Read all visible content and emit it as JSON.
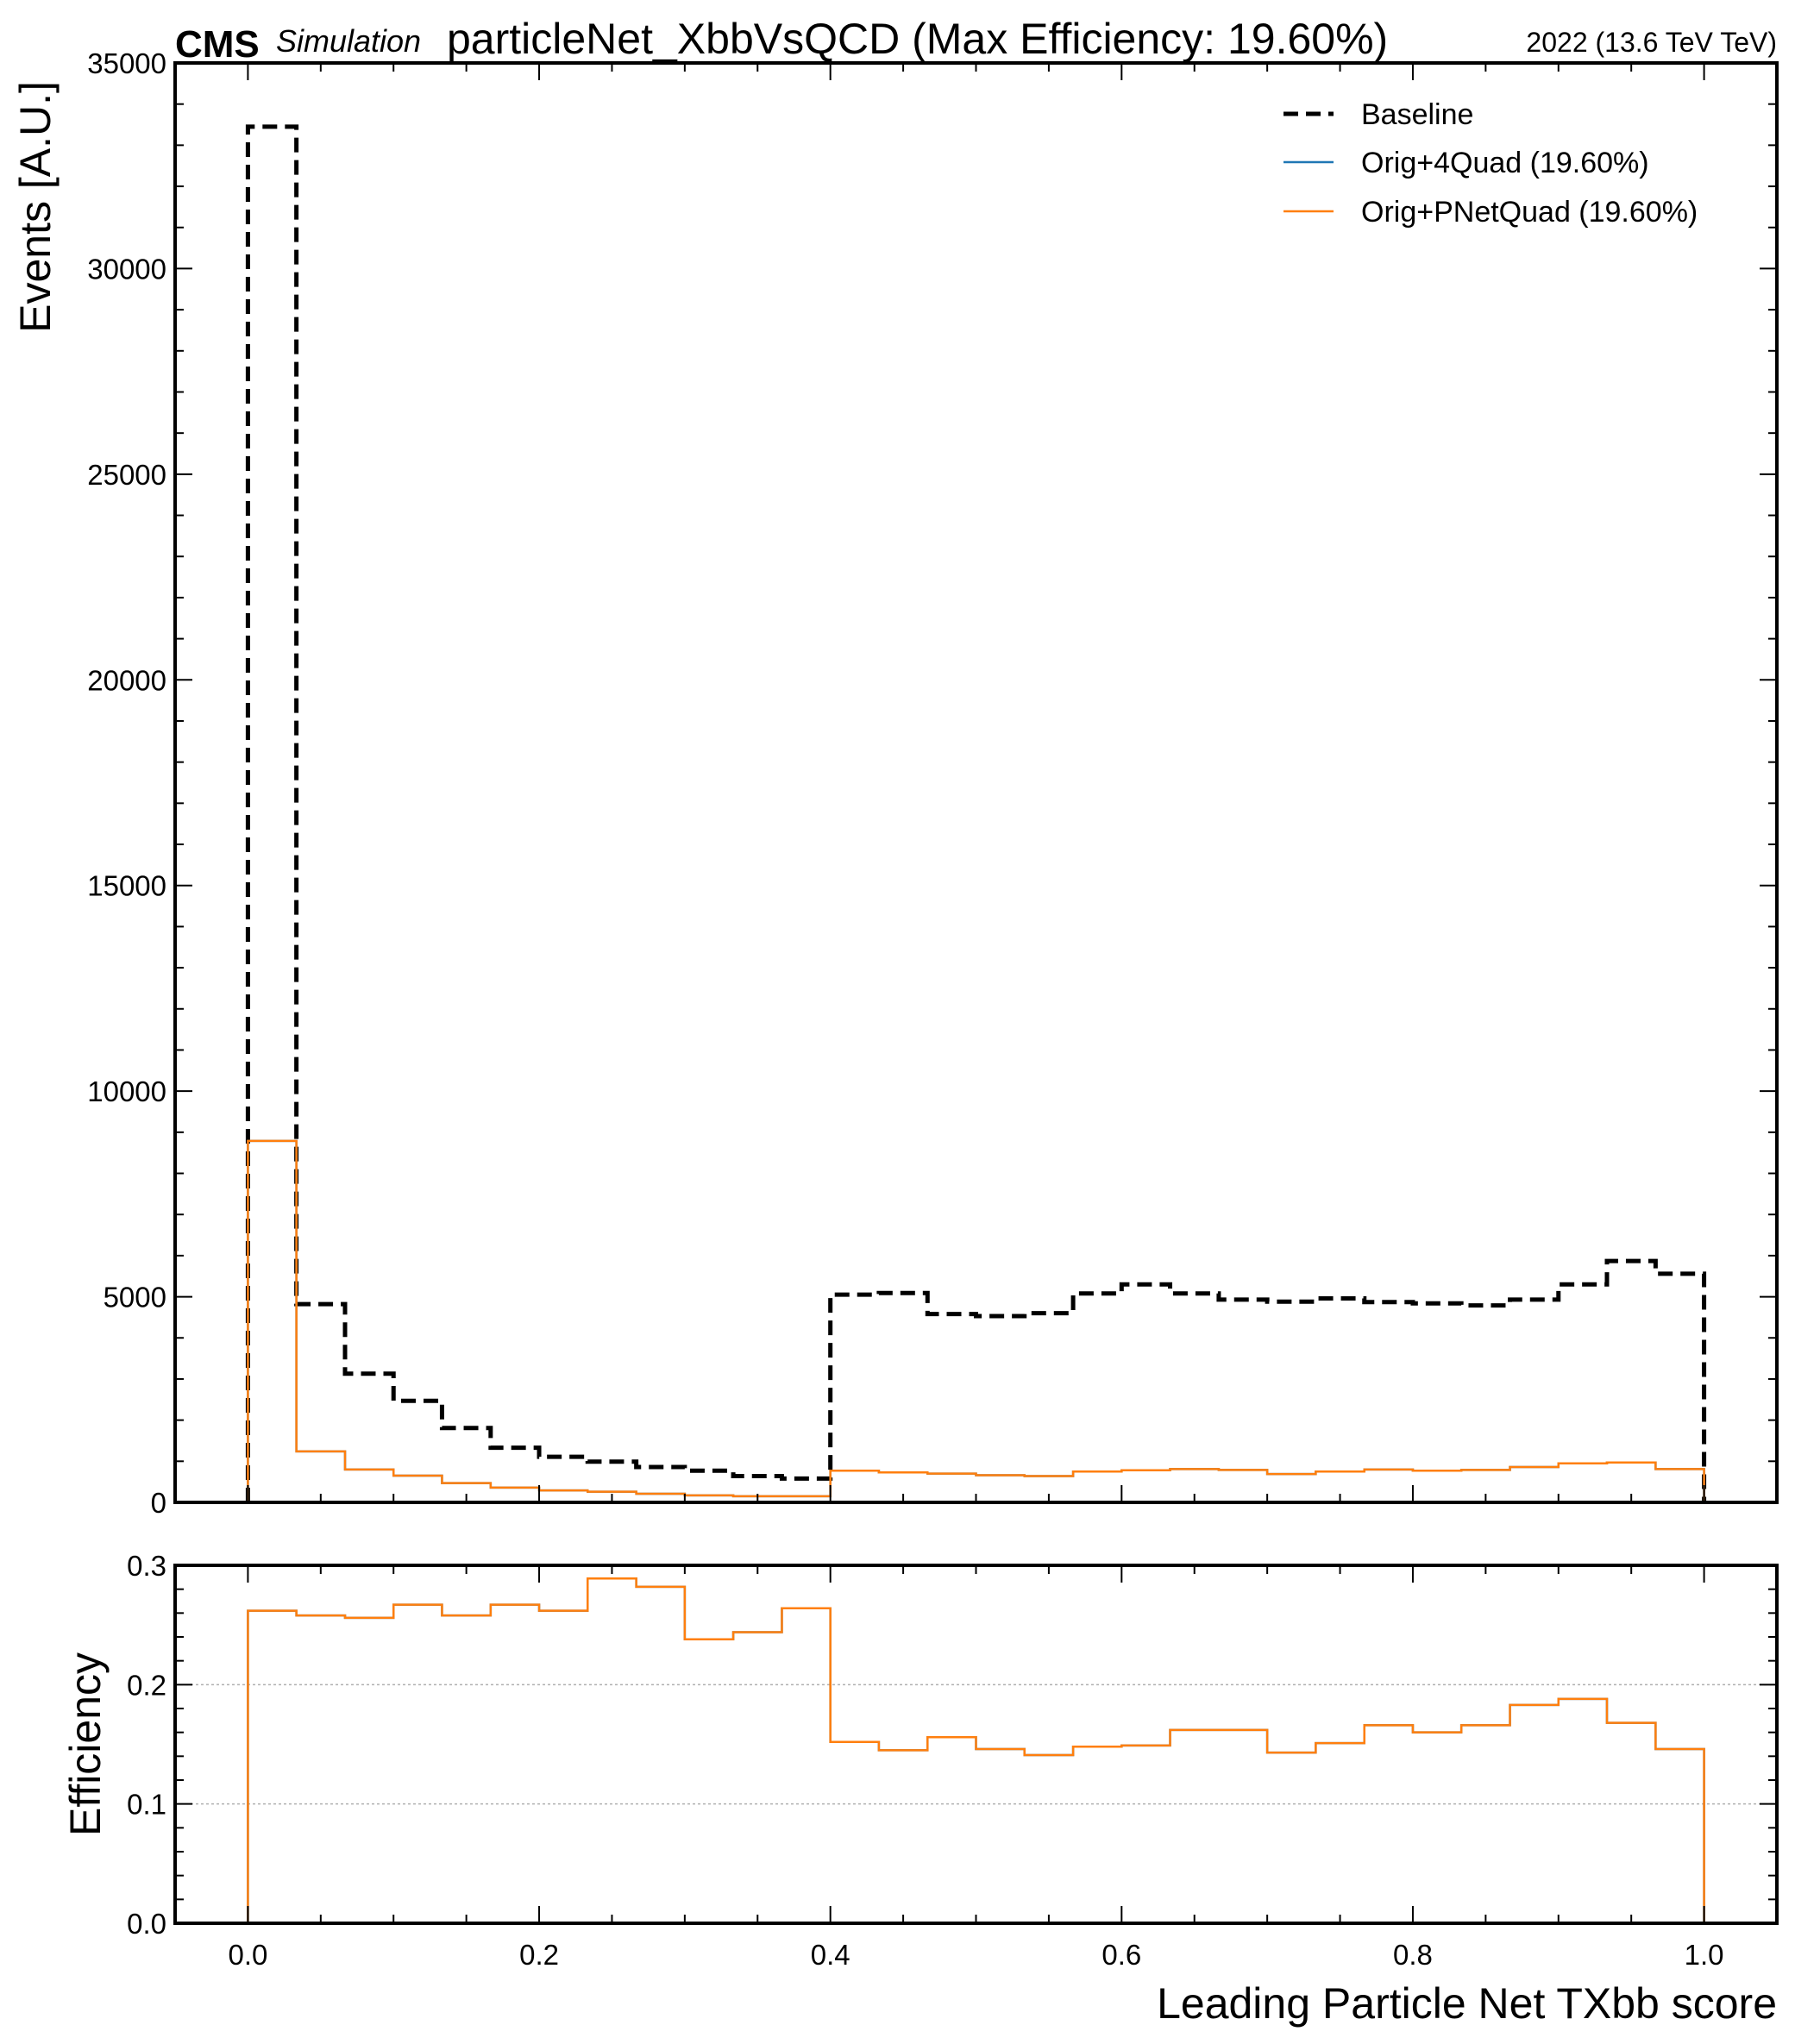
{
  "chart_data": [
    {
      "type": "histogram-step",
      "title": "particleNet_XbbVsQCD (Max Efficiency: 19.60%)",
      "experiment_label": "CMS",
      "experiment_sublabel": "Simulation",
      "lumi_label": "2022 (13.6 TeV TeV)",
      "xlabel": "",
      "ylabel": "Events [A.U.]",
      "xlim": [
        -0.05,
        1.05
      ],
      "ylim": [
        0,
        35000
      ],
      "xticks": [
        "0.0",
        "0.2",
        "0.4",
        "0.6",
        "0.8",
        "1.0"
      ],
      "xtick_values": [
        0.0,
        0.2,
        0.4,
        0.6,
        0.8,
        1.0
      ],
      "yticks": [
        "0",
        "5000",
        "10000",
        "15000",
        "20000",
        "25000",
        "30000",
        "35000"
      ],
      "ytick_values": [
        0,
        5000,
        10000,
        15000,
        20000,
        25000,
        30000,
        35000
      ],
      "legend_position": "top-right",
      "grid": false,
      "bin_edges": [
        0.0,
        0.0333,
        0.0667,
        0.1,
        0.1333,
        0.1667,
        0.2,
        0.2333,
        0.2667,
        0.3,
        0.3333,
        0.3667,
        0.4,
        0.4333,
        0.4667,
        0.5,
        0.5333,
        0.5667,
        0.6,
        0.6333,
        0.6667,
        0.7,
        0.7333,
        0.7667,
        0.8,
        0.8333,
        0.8667,
        0.9,
        0.9333,
        0.9667,
        1.0
      ],
      "series": [
        {
          "name": "Baseline",
          "color": "#000000",
          "style": "dashed",
          "values": [
            33450,
            4820,
            3130,
            2470,
            1810,
            1330,
            1110,
            990,
            860,
            770,
            640,
            580,
            5050,
            5090,
            4580,
            4530,
            4600,
            5080,
            5300,
            5080,
            4930,
            4880,
            4960,
            4870,
            4840,
            4790,
            4930,
            5300,
            5870,
            5560
          ]
        },
        {
          "name": "Orig+4Quad (19.60%)",
          "color": "#1f77b4",
          "style": "solid",
          "values": [
            8790,
            1240,
            800,
            650,
            470,
            360,
            290,
            260,
            210,
            170,
            150,
            150,
            770,
            730,
            700,
            660,
            640,
            750,
            780,
            810,
            790,
            690,
            750,
            800,
            770,
            790,
            860,
            950,
            970,
            810
          ]
        },
        {
          "name": "Orig+PNetQuad (19.60%)",
          "color": "#ff7f0e",
          "style": "solid",
          "values": [
            8790,
            1240,
            800,
            650,
            470,
            360,
            290,
            260,
            210,
            170,
            150,
            150,
            770,
            730,
            700,
            660,
            640,
            750,
            780,
            810,
            790,
            690,
            750,
            800,
            770,
            790,
            860,
            950,
            970,
            810
          ]
        }
      ]
    },
    {
      "type": "histogram-step",
      "xlabel": "Leading Particle Net TXbb score",
      "ylabel": "Efficiency",
      "xlim": [
        -0.05,
        1.05
      ],
      "ylim": [
        0.0,
        0.3
      ],
      "xticks": [
        "0.0",
        "0.2",
        "0.4",
        "0.6",
        "0.8",
        "1.0"
      ],
      "xtick_values": [
        0.0,
        0.2,
        0.4,
        0.6,
        0.8,
        1.0
      ],
      "yticks": [
        "0.0",
        "0.1",
        "0.2",
        "0.3"
      ],
      "ytick_values": [
        0.0,
        0.1,
        0.2,
        0.3
      ],
      "grid": true,
      "grid_values": [
        0.1,
        0.2
      ],
      "bin_edges": [
        0.0,
        0.0333,
        0.0667,
        0.1,
        0.1333,
        0.1667,
        0.2,
        0.2333,
        0.2667,
        0.3,
        0.3333,
        0.3667,
        0.4,
        0.4333,
        0.4667,
        0.5,
        0.5333,
        0.5667,
        0.6,
        0.6333,
        0.6667,
        0.7,
        0.7333,
        0.7667,
        0.8,
        0.8333,
        0.8667,
        0.9,
        0.9333,
        0.9667,
        1.0
      ],
      "series": [
        {
          "name": "Orig+4Quad (19.60%)",
          "color": "#1f77b4",
          "style": "solid",
          "values": [
            0.262,
            0.258,
            0.256,
            0.267,
            0.258,
            0.267,
            0.262,
            0.289,
            0.282,
            0.238,
            0.244,
            0.264,
            0.152,
            0.145,
            0.156,
            0.146,
            0.141,
            0.148,
            0.149,
            0.162,
            0.162,
            0.143,
            0.151,
            0.166,
            0.16,
            0.166,
            0.183,
            0.188,
            0.168,
            0.146
          ]
        },
        {
          "name": "Orig+PNetQuad (19.60%)",
          "color": "#ff7f0e",
          "style": "solid",
          "values": [
            0.262,
            0.258,
            0.256,
            0.267,
            0.258,
            0.267,
            0.262,
            0.289,
            0.282,
            0.238,
            0.244,
            0.264,
            0.152,
            0.145,
            0.156,
            0.146,
            0.141,
            0.148,
            0.149,
            0.162,
            0.162,
            0.143,
            0.151,
            0.166,
            0.16,
            0.166,
            0.183,
            0.188,
            0.168,
            0.146
          ]
        }
      ]
    }
  ]
}
